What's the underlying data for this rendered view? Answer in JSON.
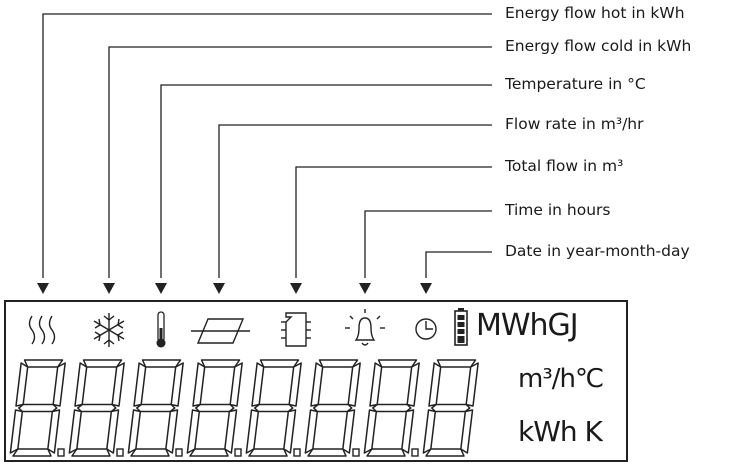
{
  "labels": [
    {
      "text": "Energy flow hot in kWh"
    },
    {
      "text": "Energy flow cold in kWh"
    },
    {
      "text": "Temperature in °C"
    },
    {
      "text": "Flow rate in m³/hr"
    },
    {
      "text": "Total flow in m³"
    },
    {
      "text": "Time in hours"
    },
    {
      "text": "Date in year-month-day"
    }
  ],
  "display": {
    "units_top": "MWhGJ",
    "units_mid": "m³/h℃",
    "units_bottom": "kWh K",
    "digit_count": 8,
    "icons": [
      "heat-waves-icon",
      "snowflake-icon",
      "thermometer-icon",
      "flow-rate-icon",
      "meter-icon",
      "alarm-bell-icon",
      "clock-icon",
      "battery-icon"
    ]
  }
}
